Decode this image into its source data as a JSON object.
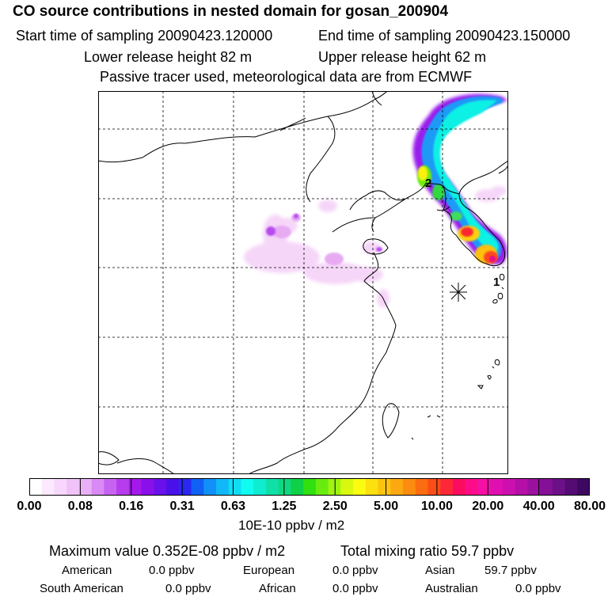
{
  "header": {
    "title": "CO  source contributions in nested domain for gosan_200904",
    "start_label": "Start time of sampling 20090423.120000",
    "end_label": "End time of sampling 20090423.150000",
    "lower_label": "Lower release height   82 m",
    "upper_label": "Upper release height   62 m",
    "tracer_note": "Passive tracer used, meteorological data are from ECMWF"
  },
  "map": {
    "markers": [
      "1",
      "2"
    ],
    "receptor_symbol": "star"
  },
  "colorbar": {
    "tick_labels": [
      "0.00",
      "0.08",
      "0.16",
      "0.31",
      "0.63",
      "1.25",
      "2.50",
      "5.00",
      "10.00",
      "20.00",
      "40.00",
      "80.00"
    ],
    "colors": [
      "#ffffff",
      "#fbe9fd",
      "#f7d7fb",
      "#f0c3f8",
      "#eab0f7",
      "#d98af4",
      "#c763f1",
      "#b63cee",
      "#a518eb",
      "#8a10ea",
      "#6a10ea",
      "#4a10ea",
      "#2a28f0",
      "#1060f5",
      "#1090f8",
      "#10b8f8",
      "#10dcf4",
      "#10fcf0",
      "#10ecd0",
      "#10e0a8",
      "#10d880",
      "#10d048",
      "#30e010",
      "#68ec10",
      "#a0f410",
      "#d8f810",
      "#fcfc10",
      "#fce010",
      "#fcc410",
      "#fca810",
      "#fc8c10",
      "#fc6c10",
      "#fc4c18",
      "#fc2838",
      "#fc0c60",
      "#fc0c88",
      "#f410a4",
      "#e010b0",
      "#cc10b0",
      "#b410a8",
      "#9c10a0",
      "#841098",
      "#6c1088",
      "#540c74",
      "#3c0860"
    ],
    "units": "10E-10 ppbv / m2"
  },
  "summary": {
    "max_label": "Maximum value  0.352E-08 ppbv / m2",
    "total_label": "Total mixing ratio       59.7 ppbv",
    "regions": [
      {
        "name": "American",
        "value": "0.0 ppbv"
      },
      {
        "name": "European",
        "value": "0.0 ppbv"
      },
      {
        "name": "Asian",
        "value": "59.7 ppbv"
      },
      {
        "name": "South American",
        "value": "0.0 ppbv"
      },
      {
        "name": "African",
        "value": "0.0 ppbv"
      },
      {
        "name": "Australian",
        "value": "0.0 ppbv"
      }
    ]
  }
}
